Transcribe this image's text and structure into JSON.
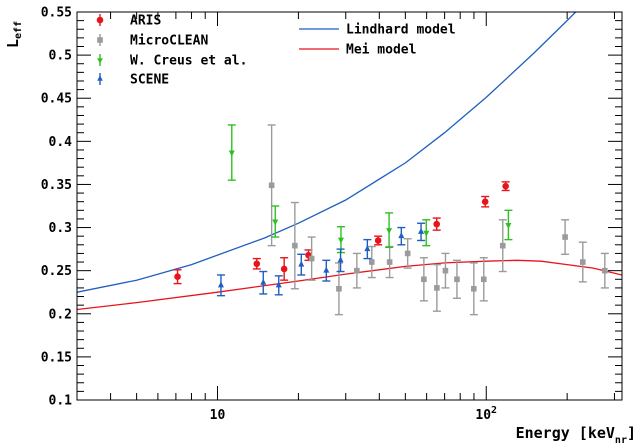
{
  "chart_data": {
    "type": "scatter",
    "title": "",
    "xlabel": "Energy [keV",
    "xlabel_sub": "nr",
    "xlabel_close": "]",
    "ylabel": "L",
    "ylabel_sub": "eff",
    "xscale": "log",
    "xlim": [
      3,
      320
    ],
    "ylim": [
      0.1,
      0.55
    ],
    "x_ticks": [
      {
        "v": 10,
        "base": "10",
        "exp": ""
      },
      {
        "v": 100,
        "base": "10",
        "exp": "2"
      }
    ],
    "y_ticks": [
      "0.1",
      "0.15",
      "0.2",
      "0.25",
      "0.3",
      "0.35",
      "0.4",
      "0.45",
      "0.5",
      "0.55"
    ],
    "grid": false,
    "legend_position": "top-left",
    "series": [
      {
        "name": "ARIS",
        "color": "#e8141b",
        "marker": "circle",
        "points": [
          {
            "x": 7.1,
            "y": 0.243,
            "err": 0.008
          },
          {
            "x": 14.0,
            "y": 0.258,
            "err": 0.006
          },
          {
            "x": 17.7,
            "y": 0.252,
            "err": 0.013
          },
          {
            "x": 21.8,
            "y": 0.268,
            "err": 0.006
          },
          {
            "x": 39.6,
            "y": 0.285,
            "err": 0.005
          },
          {
            "x": 65.4,
            "y": 0.304,
            "err": 0.007
          },
          {
            "x": 99.1,
            "y": 0.33,
            "err": 0.006
          },
          {
            "x": 118.1,
            "y": 0.348,
            "err": 0.005
          }
        ]
      },
      {
        "name": "MicroCLEAN",
        "color": "#9b9b9b",
        "marker": "square",
        "points": [
          {
            "x": 15.9,
            "y": 0.349,
            "err": 0.07
          },
          {
            "x": 19.4,
            "y": 0.279,
            "err": 0.05
          },
          {
            "x": 22.4,
            "y": 0.264,
            "err": 0.025
          },
          {
            "x": 28.3,
            "y": 0.229,
            "err": 0.03
          },
          {
            "x": 33.0,
            "y": 0.25,
            "err": 0.02
          },
          {
            "x": 37.5,
            "y": 0.26,
            "err": 0.018
          },
          {
            "x": 43.7,
            "y": 0.26,
            "err": 0.018
          },
          {
            "x": 51.0,
            "y": 0.27,
            "err": 0.017
          },
          {
            "x": 58.6,
            "y": 0.24,
            "err": 0.025
          },
          {
            "x": 65.5,
            "y": 0.23,
            "err": 0.027
          },
          {
            "x": 70.5,
            "y": 0.25,
            "err": 0.02
          },
          {
            "x": 77.8,
            "y": 0.24,
            "err": 0.022
          },
          {
            "x": 89.9,
            "y": 0.229,
            "err": 0.03
          },
          {
            "x": 97.9,
            "y": 0.24,
            "err": 0.025
          },
          {
            "x": 115.2,
            "y": 0.279,
            "err": 0.03
          },
          {
            "x": 196.5,
            "y": 0.289,
            "err": 0.02
          },
          {
            "x": 228.7,
            "y": 0.26,
            "err": 0.023
          },
          {
            "x": 276.2,
            "y": 0.25,
            "err": 0.02
          }
        ]
      },
      {
        "name": "W. Creus et al.",
        "color": "#2fbf22",
        "marker": "triangle-down",
        "points": [
          {
            "x": 11.3,
            "y": 0.387,
            "err": 0.032
          },
          {
            "x": 16.4,
            "y": 0.307,
            "err": 0.018
          },
          {
            "x": 28.8,
            "y": 0.286,
            "err": 0.015
          },
          {
            "x": 43.5,
            "y": 0.297,
            "err": 0.02
          },
          {
            "x": 59.8,
            "y": 0.294,
            "err": 0.015
          },
          {
            "x": 120.9,
            "y": 0.303,
            "err": 0.017
          }
        ]
      },
      {
        "name": "SCENE",
        "color": "#1f5fc2",
        "marker": "triangle-up",
        "points": [
          {
            "x": 10.3,
            "y": 0.233,
            "err": 0.012
          },
          {
            "x": 14.8,
            "y": 0.236,
            "err": 0.013
          },
          {
            "x": 16.9,
            "y": 0.233,
            "err": 0.011
          },
          {
            "x": 20.5,
            "y": 0.257,
            "err": 0.012
          },
          {
            "x": 25.4,
            "y": 0.25,
            "err": 0.012
          },
          {
            "x": 28.7,
            "y": 0.262,
            "err": 0.013
          },
          {
            "x": 36.1,
            "y": 0.275,
            "err": 0.011
          },
          {
            "x": 48.3,
            "y": 0.29,
            "err": 0.01
          },
          {
            "x": 57.2,
            "y": 0.295,
            "err": 0.01
          }
        ]
      }
    ],
    "curves": [
      {
        "name": "Lindhard model",
        "color": "#1f5fc2",
        "points": [
          [
            3,
            0.225
          ],
          [
            5,
            0.239
          ],
          [
            8,
            0.257
          ],
          [
            10,
            0.268
          ],
          [
            15,
            0.288
          ],
          [
            20,
            0.305
          ],
          [
            30,
            0.332
          ],
          [
            50,
            0.375
          ],
          [
            70,
            0.41
          ],
          [
            100,
            0.451
          ],
          [
            150,
            0.502
          ],
          [
            200,
            0.54
          ],
          [
            215,
            0.55
          ]
        ]
      },
      {
        "name": "Mei model",
        "color": "#e8141b",
        "points": [
          [
            3,
            0.205
          ],
          [
            5,
            0.213
          ],
          [
            10,
            0.225
          ],
          [
            20,
            0.238
          ],
          [
            30,
            0.246
          ],
          [
            50,
            0.255
          ],
          [
            70,
            0.259
          ],
          [
            100,
            0.261
          ],
          [
            130,
            0.262
          ],
          [
            160,
            0.261
          ],
          [
            200,
            0.257
          ],
          [
            250,
            0.253
          ],
          [
            320,
            0.245
          ]
        ]
      }
    ]
  }
}
